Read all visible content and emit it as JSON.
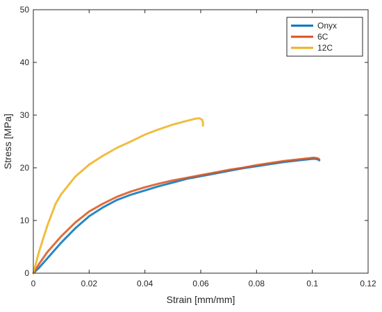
{
  "chart_data": {
    "type": "line",
    "title": "",
    "xlabel": "Strain [mm/mm]",
    "ylabel": "Stress [MPa]",
    "xlim": [
      0,
      0.12
    ],
    "ylim": [
      0,
      50
    ],
    "x_ticks": [
      0,
      0.02,
      0.04,
      0.06,
      0.08,
      0.1,
      0.12
    ],
    "x_tick_labels": [
      "0",
      "0.02",
      "0.04",
      "0.06",
      "0.08",
      "0.1",
      "0.12"
    ],
    "y_ticks": [
      0,
      10,
      20,
      30,
      40,
      50
    ],
    "y_tick_labels": [
      "0",
      "10",
      "20",
      "30",
      "40",
      "50"
    ],
    "grid": false,
    "legend_position": "top-right",
    "series": [
      {
        "name": "Onyx",
        "color": "#0072BD",
        "x": [
          0,
          0.002,
          0.005,
          0.01,
          0.015,
          0.02,
          0.025,
          0.03,
          0.035,
          0.04,
          0.045,
          0.05,
          0.055,
          0.06,
          0.065,
          0.07,
          0.075,
          0.08,
          0.085,
          0.09,
          0.095,
          0.1,
          0.101,
          0.102,
          0.1025
        ],
        "y": [
          0,
          1.0,
          2.8,
          5.8,
          8.5,
          10.8,
          12.5,
          13.9,
          14.9,
          15.7,
          16.5,
          17.2,
          17.9,
          18.4,
          18.9,
          19.4,
          19.9,
          20.3,
          20.7,
          21.1,
          21.4,
          21.7,
          21.7,
          21.6,
          21.4
        ]
      },
      {
        "name": "6C",
        "color": "#D95319",
        "x": [
          0,
          0.002,
          0.005,
          0.01,
          0.015,
          0.02,
          0.025,
          0.03,
          0.035,
          0.04,
          0.045,
          0.05,
          0.055,
          0.06,
          0.065,
          0.07,
          0.075,
          0.08,
          0.085,
          0.09,
          0.095,
          0.1,
          0.101,
          0.102,
          0.1025
        ],
        "y": [
          0,
          1.7,
          4.0,
          7.0,
          9.6,
          11.7,
          13.2,
          14.5,
          15.5,
          16.3,
          17.0,
          17.6,
          18.1,
          18.6,
          19.1,
          19.6,
          20.0,
          20.5,
          20.9,
          21.3,
          21.6,
          21.9,
          21.9,
          21.8,
          21.6
        ]
      },
      {
        "name": "12C",
        "color": "#EDB120",
        "x": [
          0,
          0.002,
          0.005,
          0.008,
          0.01,
          0.015,
          0.02,
          0.025,
          0.03,
          0.035,
          0.04,
          0.045,
          0.05,
          0.055,
          0.058,
          0.0595,
          0.0605,
          0.0608,
          0.0608
        ],
        "y": [
          0,
          4.0,
          9.0,
          13.2,
          15.0,
          18.3,
          20.6,
          22.3,
          23.8,
          25.0,
          26.3,
          27.3,
          28.2,
          28.9,
          29.3,
          29.4,
          29.1,
          28.6,
          28.0
        ]
      }
    ]
  }
}
